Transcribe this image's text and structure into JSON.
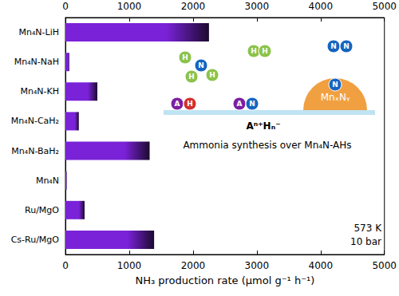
{
  "chart_data": {
    "type": "bar",
    "orientation": "horizontal",
    "categories": [
      "Mn₄N-LiH",
      "Mn₄N-NaH",
      "Mn₄N-KH",
      "Mn₄N-CaH₂",
      "Mn₄N-BaH₂",
      "Mn₄N",
      "Ru/MgO",
      "Cs-Ru/MgO"
    ],
    "values": [
      2250,
      60,
      500,
      210,
      1320,
      20,
      300,
      1390
    ],
    "color": "#7a22d8",
    "xlabel": "NH₃ production rate (μmol g⁻¹ h⁻¹)",
    "xlim": [
      0,
      5000
    ],
    "xticks": [
      0,
      1000,
      2000,
      3000,
      4000,
      5000
    ],
    "grid": false,
    "annotations": [
      "573 K",
      "10 bar"
    ],
    "inset": {
      "caption": "Ammonia synthesis over Mn₄N-AHs",
      "surface_label": "MnₓNᵧ",
      "support_label": "Aⁿ⁺Hₙ⁻",
      "atoms": [
        "H",
        "N",
        "H",
        "H",
        "H",
        "H",
        "N",
        "N",
        "N",
        "A",
        "H",
        "A",
        "N"
      ]
    }
  }
}
